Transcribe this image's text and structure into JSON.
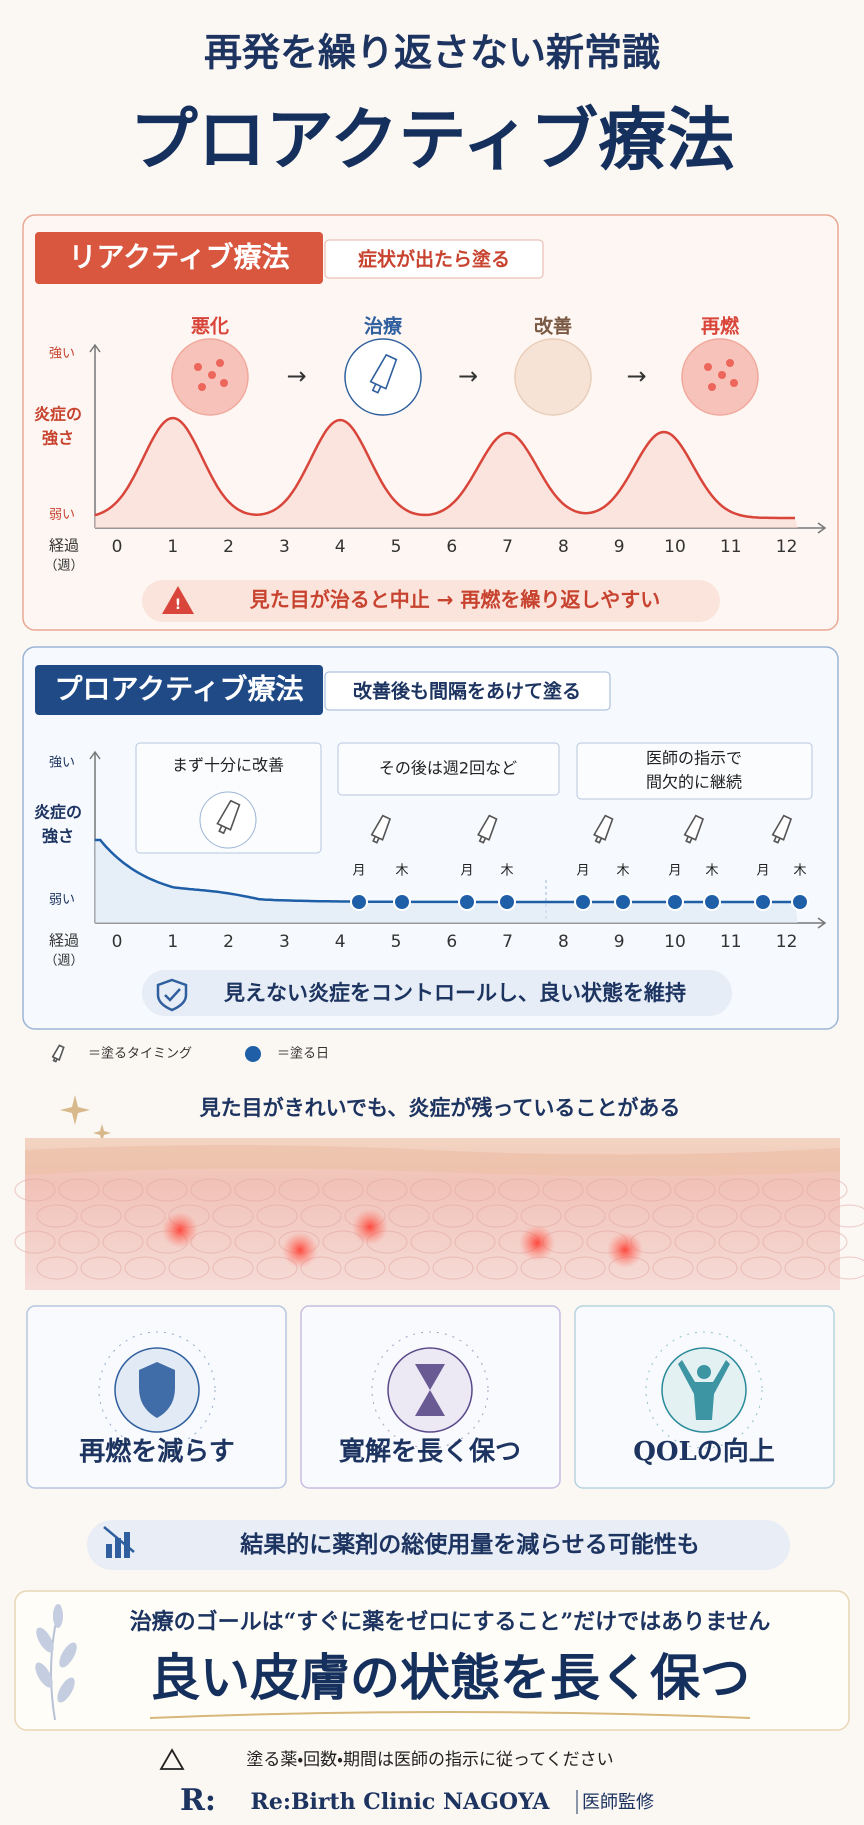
{
  "header": {
    "subtitle": "再発を繰り返さない新常識",
    "title": "プロアクティブ療法"
  },
  "reactive": {
    "label": "リアクティブ療法",
    "caption": "症状が出たら塗る",
    "stages": [
      "悪化",
      "治療",
      "改善",
      "再燃"
    ],
    "y_top": "強い",
    "y_label": [
      "炎症の",
      "強さ"
    ],
    "y_bottom": "弱い",
    "x_label": [
      "経過",
      "（週）"
    ],
    "ticks": [
      0,
      1,
      2,
      3,
      4,
      5,
      6,
      7,
      8,
      9,
      10,
      11,
      12
    ],
    "warning": "見た目が治ると中止 → 再燃を繰り返しやすい"
  },
  "proactive": {
    "label": "プロアクティブ療法",
    "caption": "改善後も間隔をあけて塗る",
    "phases": [
      [
        "まず十分に改善"
      ],
      [
        "その後は週2回など"
      ],
      [
        "医師の指示で",
        "間欠的に継続"
      ]
    ],
    "y_top": "強い",
    "y_label": [
      "炎症の",
      "強さ"
    ],
    "y_bottom": "弱い",
    "x_label": [
      "経過",
      "（週）"
    ],
    "ticks": [
      0,
      1,
      2,
      3,
      4,
      5,
      6,
      7,
      8,
      9,
      10,
      11,
      12
    ],
    "days": [
      "月",
      "木",
      "月",
      "木",
      "月",
      "木",
      "月",
      "木",
      "月",
      "木"
    ],
    "message": "見えない炎症をコントロールし、良い状態を維持"
  },
  "legend": {
    "tube": "＝塗るタイミング",
    "dot": "＝塗る日"
  },
  "skin_caption": "見た目がきれいでも、炎症が残っていることがある",
  "benefits": [
    "再燃を減らす",
    "寛解を長く保つ",
    "QOLの向上"
  ],
  "result": "結果的に薬剤の総使用量を減らせる可能性も",
  "goal": {
    "lead": "治療のゴールは“すぐに薬をゼロにすること”だけではありません",
    "main": "良い皮膚の状態を長く保つ"
  },
  "notice": "塗る薬・回数・期間は医師の指示に従ってください",
  "footer": {
    "logo": "R:",
    "clinic": "Re:Birth Clinic NAGOYA",
    "note": "医師監修"
  }
}
